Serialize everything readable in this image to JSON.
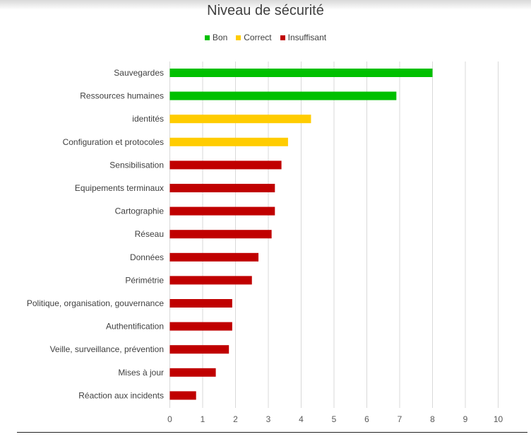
{
  "chart_data": {
    "type": "bar",
    "orientation": "horizontal",
    "title": "Niveau de sécurité",
    "xlabel": "",
    "ylabel": "",
    "xlim": [
      0,
      10
    ],
    "x_ticks": [
      0,
      1,
      2,
      3,
      4,
      5,
      6,
      7,
      8,
      9,
      10
    ],
    "grid": "vertical",
    "legend_position": "top",
    "legend": [
      {
        "key": "bon",
        "label": "Bon",
        "color": "#00c000"
      },
      {
        "key": "correct",
        "label": "Correct",
        "color": "#ffcc00"
      },
      {
        "key": "insuffisant",
        "label": "Insuffisant",
        "color": "#c00000"
      }
    ],
    "categories": [
      "Sauvegardes",
      "Ressources humaines",
      "identités",
      "Configuration et protocoles",
      "Sensibilisation",
      "Equipements terminaux",
      "Cartographie",
      "Réseau",
      "Données",
      "Périmétrie",
      "Politique, organisation, gouvernance",
      "Authentification",
      "Veille, surveillance, prévention",
      "Mises à jour",
      "Réaction aux incidents"
    ],
    "values": [
      8,
      6.9,
      4.3,
      3.6,
      3.4,
      3.2,
      3.2,
      3.1,
      2.7,
      2.5,
      1.9,
      1.9,
      1.8,
      1.4,
      0.8
    ],
    "levels": [
      "bon",
      "bon",
      "correct",
      "correct",
      "insuffisant",
      "insuffisant",
      "insuffisant",
      "insuffisant",
      "insuffisant",
      "insuffisant",
      "insuffisant",
      "insuffisant",
      "insuffisant",
      "insuffisant",
      "insuffisant"
    ]
  }
}
